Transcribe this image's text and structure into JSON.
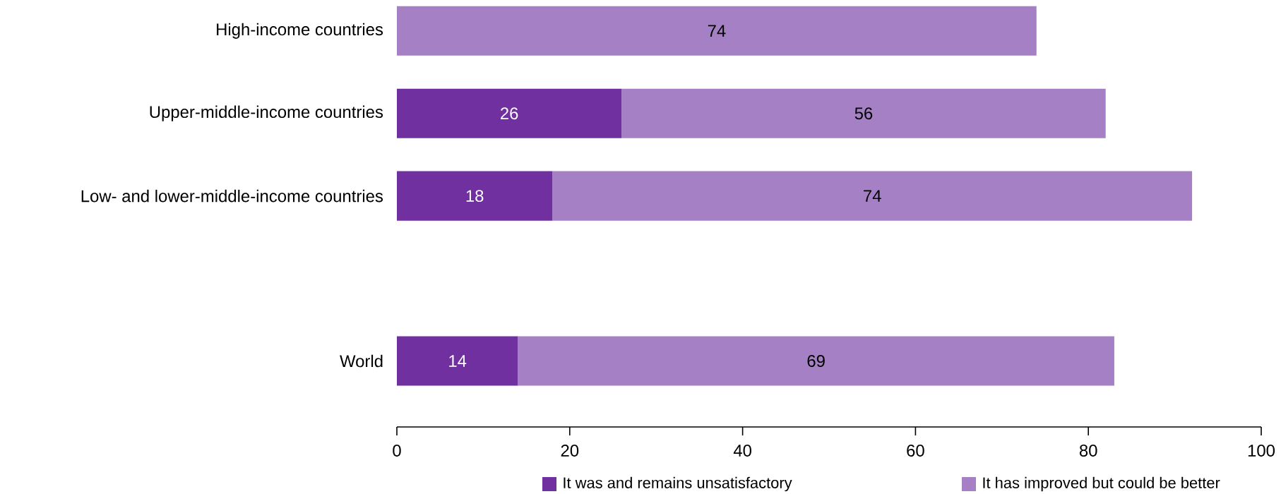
{
  "chart_data": {
    "type": "bar",
    "orientation": "horizontal",
    "stacked": true,
    "data_labels": true,
    "legend": "bottom",
    "grid": false,
    "categories": [
      "High-income countries",
      "Upper-middle-income countries",
      "Low- and lower-middle-income countries",
      null,
      "World"
    ],
    "series": [
      {
        "name": "It was and remains unsatisfactory",
        "color": "#7030a0",
        "values": [
          null,
          26,
          18,
          null,
          14
        ]
      },
      {
        "name": "It has improved but could be better",
        "color": "#a680c4",
        "values": [
          74,
          56,
          74,
          null,
          69
        ]
      }
    ],
    "xlim": [
      0,
      100
    ],
    "xticks": [
      0,
      20,
      40,
      60,
      80,
      100
    ]
  }
}
